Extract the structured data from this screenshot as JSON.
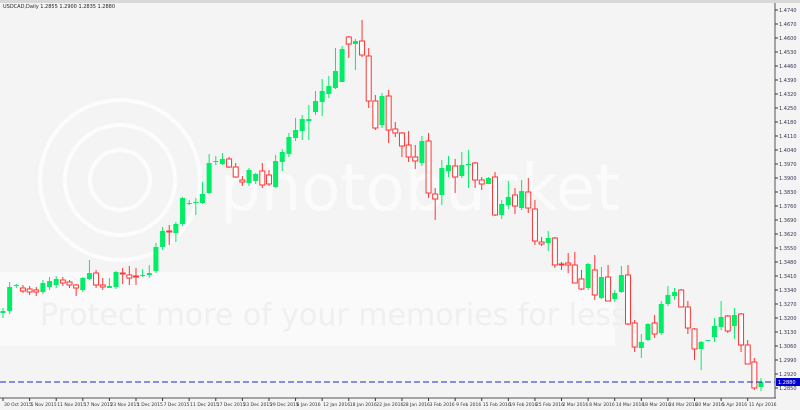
{
  "header": {
    "symbol": "USDCAD,Daily",
    "ohlc": "1.2855 1.2900 1.2835 1.2880"
  },
  "watermark": {
    "logo_text": "photobucket",
    "banner_text": "Protect more of your memories for less!"
  },
  "colors": {
    "background": "#f4f4f4",
    "bull": "#00ee66",
    "bear_outline": "#ff3333",
    "bear_fill": "#ffffff",
    "current_price_line": "#2222cc",
    "axis_text": "#333355"
  },
  "chart_data": {
    "type": "candlestick",
    "title": "USDCAD,Daily",
    "ylim": [
      1.28,
      1.479
    ],
    "grid": false,
    "current_price": 1.288,
    "y_ticks": [
      "1.4740",
      "1.4670",
      "1.4600",
      "1.4530",
      "1.4460",
      "1.4390",
      "1.4320",
      "1.4250",
      "1.4180",
      "1.4110",
      "1.4040",
      "1.3970",
      "1.3900",
      "1.3830",
      "1.3760",
      "1.3690",
      "1.3620",
      "1.3550",
      "1.3480",
      "1.3410",
      "1.3340",
      "1.3270",
      "1.3200",
      "1.3130",
      "1.3060",
      "1.2990",
      "1.2920",
      "1.2850"
    ],
    "x_ticks": [
      "30 Oct 2015",
      "5 Nov 2015",
      "11 Nov 2015",
      "17 Nov 2015",
      "23 Nov 2015",
      "1 Dec 2015",
      "7 Dec 2015",
      "11 Dec 2015",
      "17 Dec 2015",
      "23 Dec 2015",
      "29 Dec 2015",
      "6 Jan 2016",
      "12 Jan 2016",
      "18 Jan 2016",
      "22 Jan 2016",
      "28 Jan 2016",
      "3 Feb 2016",
      "9 Feb 2016",
      "15 Feb 2016",
      "19 Feb 2016",
      "25 Feb 2016",
      "2 Mar 2016",
      "8 Mar 2016",
      "14 Mar 2016",
      "18 Mar 2016",
      "24 Mar 2016",
      "30 Mar 2016",
      "5 Apr 2016",
      "11 Apr 2016"
    ],
    "candles_ohlc": [
      [
        1.3225,
        1.325,
        1.32,
        1.3235
      ],
      [
        1.3235,
        1.338,
        1.322,
        1.3355
      ],
      [
        1.336,
        1.337,
        1.335,
        1.3365
      ],
      [
        1.335,
        1.3365,
        1.3325,
        1.3335
      ],
      [
        1.3345,
        1.336,
        1.3315,
        1.333
      ],
      [
        1.334,
        1.3355,
        1.331,
        1.333
      ],
      [
        1.333,
        1.339,
        1.332,
        1.3375
      ],
      [
        1.3355,
        1.3405,
        1.334,
        1.3385
      ],
      [
        1.3365,
        1.341,
        1.335,
        1.3395
      ],
      [
        1.339,
        1.3405,
        1.336,
        1.3375
      ],
      [
        1.338,
        1.339,
        1.335,
        1.3365
      ],
      [
        1.3365,
        1.337,
        1.331,
        1.335
      ],
      [
        1.334,
        1.3405,
        1.333,
        1.34
      ],
      [
        1.3395,
        1.349,
        1.339,
        1.3425
      ],
      [
        1.3425,
        1.344,
        1.335,
        1.3365
      ],
      [
        1.3365,
        1.34,
        1.334,
        1.3355
      ],
      [
        1.335,
        1.34,
        1.335,
        1.336
      ],
      [
        1.3355,
        1.3435,
        1.3345,
        1.343
      ],
      [
        1.3425,
        1.345,
        1.337,
        1.342
      ],
      [
        1.3415,
        1.346,
        1.3365,
        1.34
      ],
      [
        1.341,
        1.345,
        1.3365,
        1.3405
      ],
      [
        1.341,
        1.3445,
        1.3405,
        1.3415
      ],
      [
        1.3415,
        1.3465,
        1.34,
        1.3425
      ],
      [
        1.3435,
        1.3575,
        1.3425,
        1.3555
      ],
      [
        1.3555,
        1.3655,
        1.354,
        1.3635
      ],
      [
        1.3635,
        1.3665,
        1.3565,
        1.363
      ],
      [
        1.3625,
        1.368,
        1.358,
        1.367
      ],
      [
        1.367,
        1.3805,
        1.366,
        1.38
      ],
      [
        1.3775,
        1.379,
        1.3765,
        1.3775
      ],
      [
        1.3775,
        1.38,
        1.3715,
        1.378
      ],
      [
        1.3775,
        1.388,
        1.377,
        1.382
      ],
      [
        1.3825,
        1.402,
        1.382,
        1.3975
      ],
      [
        1.398,
        1.401,
        1.3965,
        1.3985
      ],
      [
        1.397,
        1.4025,
        1.3965,
        1.3995
      ],
      [
        1.3995,
        1.4005,
        1.395,
        1.3955
      ],
      [
        1.3955,
        1.3975,
        1.39,
        1.3905
      ],
      [
        1.389,
        1.391,
        1.386,
        1.388
      ],
      [
        1.3875,
        1.395,
        1.386,
        1.394
      ],
      [
        1.3885,
        1.3925,
        1.387,
        1.392
      ],
      [
        1.3935,
        1.3975,
        1.385,
        1.3865
      ],
      [
        1.3915,
        1.394,
        1.386,
        1.387
      ],
      [
        1.3855,
        1.4015,
        1.385,
        1.3985
      ],
      [
        1.398,
        1.4045,
        1.3935,
        1.403
      ],
      [
        1.402,
        1.4125,
        1.4005,
        1.4105
      ],
      [
        1.41,
        1.42,
        1.4085,
        1.414
      ],
      [
        1.4135,
        1.4215,
        1.409,
        1.4195
      ],
      [
        1.4185,
        1.4265,
        1.409,
        1.4195
      ],
      [
        1.423,
        1.4335,
        1.4215,
        1.4285
      ],
      [
        1.428,
        1.4395,
        1.421,
        1.4335
      ],
      [
        1.432,
        1.441,
        1.43,
        1.436
      ],
      [
        1.435,
        1.455,
        1.4345,
        1.4435
      ],
      [
        1.438,
        1.456,
        1.438,
        1.4545
      ],
      [
        1.4605,
        1.461,
        1.45,
        1.457
      ],
      [
        1.457,
        1.4595,
        1.444,
        1.4585
      ],
      [
        1.4585,
        1.469,
        1.4505,
        1.4515
      ],
      [
        1.451,
        1.455,
        1.425,
        1.4285
      ],
      [
        1.4285,
        1.4315,
        1.414,
        1.415
      ],
      [
        1.4165,
        1.4325,
        1.415,
        1.431
      ],
      [
        1.431,
        1.434,
        1.4075,
        1.414
      ],
      [
        1.4145,
        1.418,
        1.4105,
        1.4125
      ],
      [
        1.4125,
        1.413,
        1.4005,
        1.406
      ],
      [
        1.4065,
        1.4135,
        1.398,
        1.4005
      ],
      [
        1.4005,
        1.4065,
        1.3945,
        1.3985
      ],
      [
        1.3975,
        1.411,
        1.396,
        1.4085
      ],
      [
        1.4085,
        1.4125,
        1.38,
        1.3825
      ],
      [
        1.382,
        1.385,
        1.369,
        1.3795
      ],
      [
        1.3815,
        1.399,
        1.3765,
        1.395
      ],
      [
        1.3935,
        1.401,
        1.3905,
        1.3965
      ],
      [
        1.396,
        1.3995,
        1.3825,
        1.3905
      ],
      [
        1.391,
        1.403,
        1.39,
        1.3965
      ],
      [
        1.3965,
        1.404,
        1.385,
        1.397
      ],
      [
        1.3975,
        1.398,
        1.385,
        1.389
      ],
      [
        1.389,
        1.3905,
        1.384,
        1.387
      ],
      [
        1.387,
        1.3905,
        1.387,
        1.39
      ],
      [
        1.3905,
        1.393,
        1.371,
        1.3715
      ],
      [
        1.3715,
        1.379,
        1.3695,
        1.377
      ],
      [
        1.3765,
        1.3885,
        1.3745,
        1.3805
      ],
      [
        1.3815,
        1.385,
        1.372,
        1.376
      ],
      [
        1.375,
        1.389,
        1.374,
        1.3835
      ],
      [
        1.383,
        1.39,
        1.3725,
        1.375
      ],
      [
        1.3745,
        1.379,
        1.3565,
        1.3585
      ],
      [
        1.358,
        1.3605,
        1.356,
        1.357
      ],
      [
        1.3575,
        1.3635,
        1.3535,
        1.36
      ],
      [
        1.36,
        1.3605,
        1.345,
        1.3465
      ],
      [
        1.347,
        1.348,
        1.344,
        1.3465
      ],
      [
        1.3475,
        1.3525,
        1.3425,
        1.3465
      ],
      [
        1.3465,
        1.353,
        1.3375,
        1.3375
      ],
      [
        1.3395,
        1.344,
        1.334,
        1.3345
      ],
      [
        1.335,
        1.3475,
        1.334,
        1.347
      ],
      [
        1.344,
        1.3515,
        1.329,
        1.3315
      ],
      [
        1.33,
        1.3455,
        1.3295,
        1.3405
      ],
      [
        1.3405,
        1.3465,
        1.3285,
        1.3285
      ],
      [
        1.3295,
        1.334,
        1.328,
        1.3325
      ],
      [
        1.333,
        1.346,
        1.3325,
        1.3415
      ],
      [
        1.3415,
        1.3465,
        1.3165,
        1.317
      ],
      [
        1.3175,
        1.319,
        1.303,
        1.3055
      ],
      [
        1.305,
        1.312,
        1.3,
        1.308
      ],
      [
        1.309,
        1.3175,
        1.3085,
        1.317
      ],
      [
        1.3175,
        1.3215,
        1.31,
        1.312
      ],
      [
        1.3125,
        1.3285,
        1.3115,
        1.327
      ],
      [
        1.327,
        1.336,
        1.326,
        1.3315
      ],
      [
        1.331,
        1.335,
        1.329,
        1.333
      ],
      [
        1.334,
        1.3345,
        1.3255,
        1.3255
      ],
      [
        1.3255,
        1.3285,
        1.312,
        1.315
      ],
      [
        1.3145,
        1.315,
        1.299,
        1.3045
      ],
      [
        1.3045,
        1.3085,
        1.294,
        1.308
      ],
      [
        1.3085,
        1.309,
        1.3085,
        1.309
      ],
      [
        1.3105,
        1.32,
        1.308,
        1.316
      ],
      [
        1.3155,
        1.3285,
        1.314,
        1.3205
      ],
      [
        1.321,
        1.3215,
        1.3125,
        1.3135
      ],
      [
        1.316,
        1.325,
        1.3095,
        1.3215
      ],
      [
        1.322,
        1.3225,
        1.303,
        1.3065
      ],
      [
        1.3065,
        1.309,
        1.297,
        1.297
      ],
      [
        1.298,
        1.3,
        1.284,
        1.285
      ],
      [
        1.2855,
        1.29,
        1.2835,
        1.288
      ]
    ]
  }
}
